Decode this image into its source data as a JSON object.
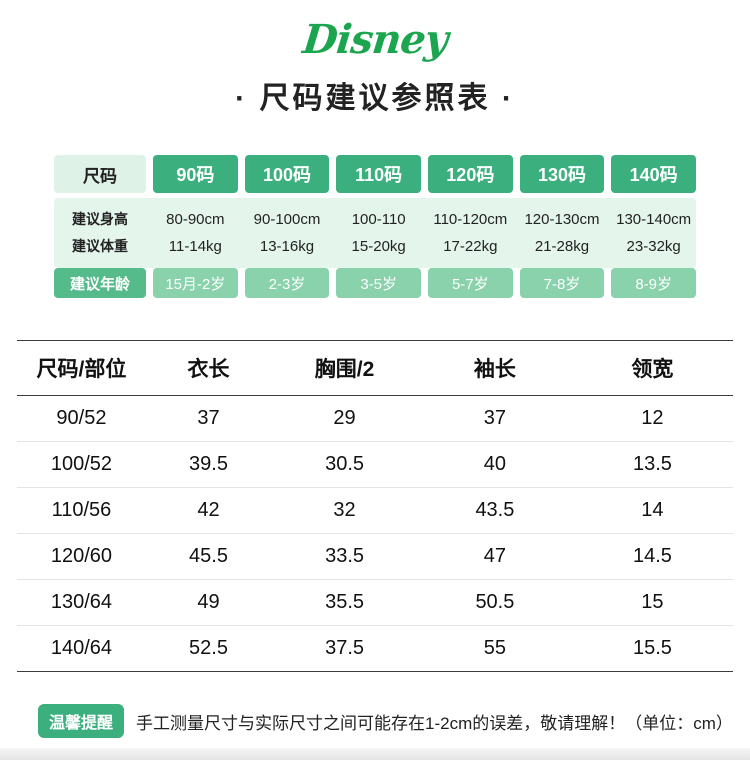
{
  "brand": {
    "logo_text": "Disney"
  },
  "page_title": "· 尺码建议参照表 ·",
  "size_table": {
    "corner_label": "尺码",
    "sizes": [
      "90码",
      "100码",
      "110码",
      "120码",
      "130码",
      "140码"
    ],
    "height_label": "建议身高",
    "weight_label": "建议体重",
    "age_label": "建议年龄",
    "columns": [
      {
        "height": "80-90cm",
        "weight": "11-14kg",
        "age": "15月-2岁"
      },
      {
        "height": "90-100cm",
        "weight": "13-16kg",
        "age": "2-3岁"
      },
      {
        "height": "100-110",
        "weight": "15-20kg",
        "age": "3-5岁"
      },
      {
        "height": "110-120cm",
        "weight": "17-22kg",
        "age": "5-7岁"
      },
      {
        "height": "120-130cm",
        "weight": "21-28kg",
        "age": "7-8岁"
      },
      {
        "height": "130-140cm",
        "weight": "23-32kg",
        "age": "8-9岁"
      }
    ]
  },
  "measure_table": {
    "headers": [
      "尺码/部位",
      "衣长",
      "胸围/2",
      "袖长",
      "领宽"
    ],
    "rows": [
      [
        "90/52",
        "37",
        "29",
        "37",
        "12"
      ],
      [
        "100/52",
        "39.5",
        "30.5",
        "40",
        "13.5"
      ],
      [
        "110/56",
        "42",
        "32",
        "43.5",
        "14"
      ],
      [
        "120/60",
        "45.5",
        "33.5",
        "47",
        "14.5"
      ],
      [
        "130/64",
        "49",
        "35.5",
        "50.5",
        "15"
      ],
      [
        "140/64",
        "52.5",
        "37.5",
        "55",
        "15.5"
      ]
    ]
  },
  "footer": {
    "badge": "温馨提醒",
    "note": "手工测量尺寸与实际尺寸之间可能存在1-2cm的误差，敬请理解！（单位：cm）"
  },
  "colors": {
    "brand_green": "#1ba54e",
    "header_green": "#3baf7d",
    "age_label_green": "#56bb8b",
    "age_green": "#8ad2ac",
    "mint_bg": "#e4f5ec"
  }
}
